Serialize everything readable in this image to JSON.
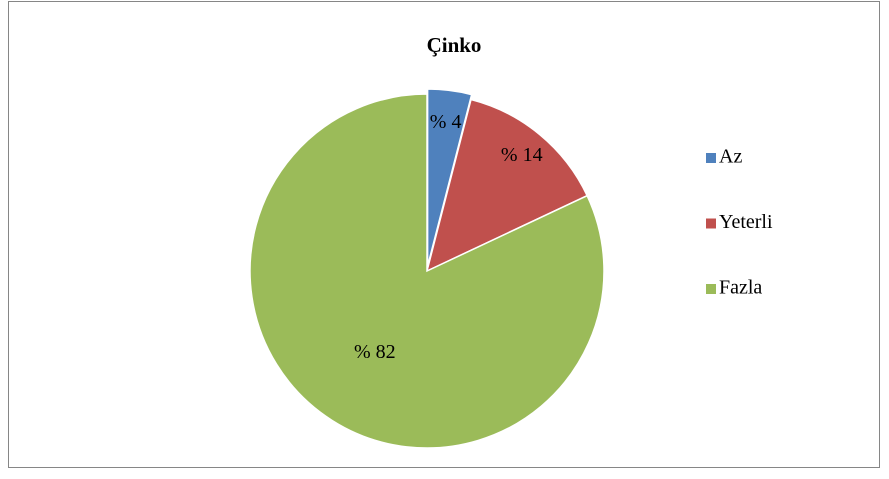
{
  "chart_data": {
    "type": "pie",
    "title": "Çinko",
    "categories": [
      "Az",
      "Yeterli",
      "Fazla"
    ],
    "values": [
      4,
      14,
      82
    ],
    "value_labels": [
      "% 4",
      "% 14",
      "% 82"
    ],
    "colors": [
      "#4f81bd",
      "#c0504d",
      "#9bbb59"
    ],
    "legend": "right"
  }
}
